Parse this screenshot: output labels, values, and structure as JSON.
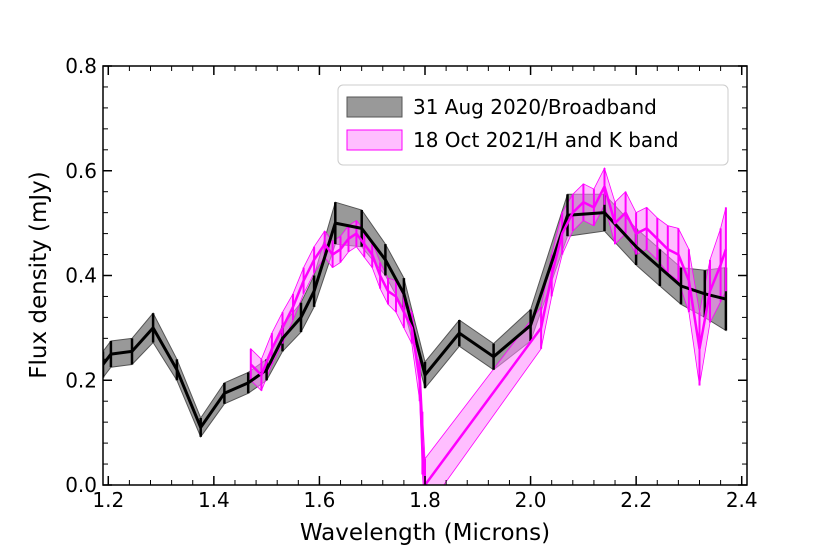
{
  "chart_data": {
    "type": "line",
    "title": "",
    "xlabel": "Wavelength (Microns)",
    "ylabel": "Flux density (mJy)",
    "xlim": [
      1.19,
      2.41
    ],
    "ylim": [
      0.0,
      0.8
    ],
    "xticks": [
      1.2,
      1.4,
      1.6,
      1.8,
      2.0,
      2.2,
      2.4
    ],
    "xtick_labels": [
      "1.2",
      "1.4",
      "1.6",
      "1.8",
      "2.0",
      "2.2",
      "2.4"
    ],
    "yticks": [
      0.0,
      0.2,
      0.4,
      0.6,
      0.8
    ],
    "ytick_labels": [
      "0.0",
      "0.2",
      "0.4",
      "0.6",
      "0.8"
    ],
    "legend_position": "top-right",
    "series": [
      {
        "name": "31 Aug 2020/Broadband",
        "color": "#000000",
        "fill": "#808080",
        "x": [
          1.19,
          1.205,
          1.245,
          1.285,
          1.33,
          1.375,
          1.42,
          1.465,
          1.5,
          1.53,
          1.565,
          1.59,
          1.63,
          1.68,
          1.725,
          1.76,
          1.8,
          1.865,
          1.93,
          2.0,
          2.07,
          2.14,
          2.2,
          2.245,
          2.285,
          2.33,
          2.37
        ],
        "y": [
          0.23,
          0.25,
          0.255,
          0.3,
          0.22,
          0.11,
          0.175,
          0.195,
          0.22,
          0.28,
          0.32,
          0.37,
          0.5,
          0.49,
          0.43,
          0.365,
          0.21,
          0.29,
          0.245,
          0.305,
          0.515,
          0.52,
          0.455,
          0.415,
          0.38,
          0.365,
          0.355
        ],
        "err": [
          0.025,
          0.025,
          0.025,
          0.028,
          0.02,
          0.018,
          0.02,
          0.02,
          0.02,
          0.025,
          0.028,
          0.03,
          0.04,
          0.035,
          0.03,
          0.03,
          0.025,
          0.025,
          0.025,
          0.03,
          0.04,
          0.035,
          0.035,
          0.035,
          0.035,
          0.045,
          0.06
        ]
      },
      {
        "name": "18 Oct 2021/H and K band",
        "color": "#ff00ff",
        "fill": "#ff88ff",
        "x": [
          1.47,
          1.49,
          1.51,
          1.53,
          1.55,
          1.57,
          1.59,
          1.61,
          1.625,
          1.64,
          1.655,
          1.67,
          1.685,
          1.7,
          1.715,
          1.73,
          1.745,
          1.76,
          1.775,
          1.79,
          1.795,
          1.8,
          2.02,
          2.04,
          2.06,
          2.08,
          2.1,
          2.12,
          2.14,
          2.16,
          2.18,
          2.2,
          2.22,
          2.24,
          2.26,
          2.28,
          2.3,
          2.32,
          2.34,
          2.36,
          2.37
        ],
        "y": [
          0.23,
          0.21,
          0.26,
          0.3,
          0.34,
          0.39,
          0.43,
          0.46,
          0.44,
          0.45,
          0.47,
          0.48,
          0.46,
          0.44,
          0.4,
          0.37,
          0.36,
          0.33,
          0.3,
          0.2,
          0.08,
          0.0,
          0.3,
          0.4,
          0.48,
          0.52,
          0.54,
          0.53,
          0.57,
          0.5,
          0.52,
          0.48,
          0.49,
          0.47,
          0.45,
          0.44,
          0.39,
          0.26,
          0.37,
          0.42,
          0.45
        ],
        "err": [
          0.03,
          0.03,
          0.03,
          0.03,
          0.025,
          0.025,
          0.025,
          0.025,
          0.025,
          0.025,
          0.025,
          0.025,
          0.025,
          0.025,
          0.025,
          0.025,
          0.03,
          0.03,
          0.03,
          0.04,
          0.06,
          0.05,
          0.04,
          0.04,
          0.04,
          0.035,
          0.035,
          0.035,
          0.035,
          0.04,
          0.04,
          0.04,
          0.04,
          0.04,
          0.045,
          0.05,
          0.06,
          0.07,
          0.06,
          0.07,
          0.08
        ]
      }
    ]
  }
}
